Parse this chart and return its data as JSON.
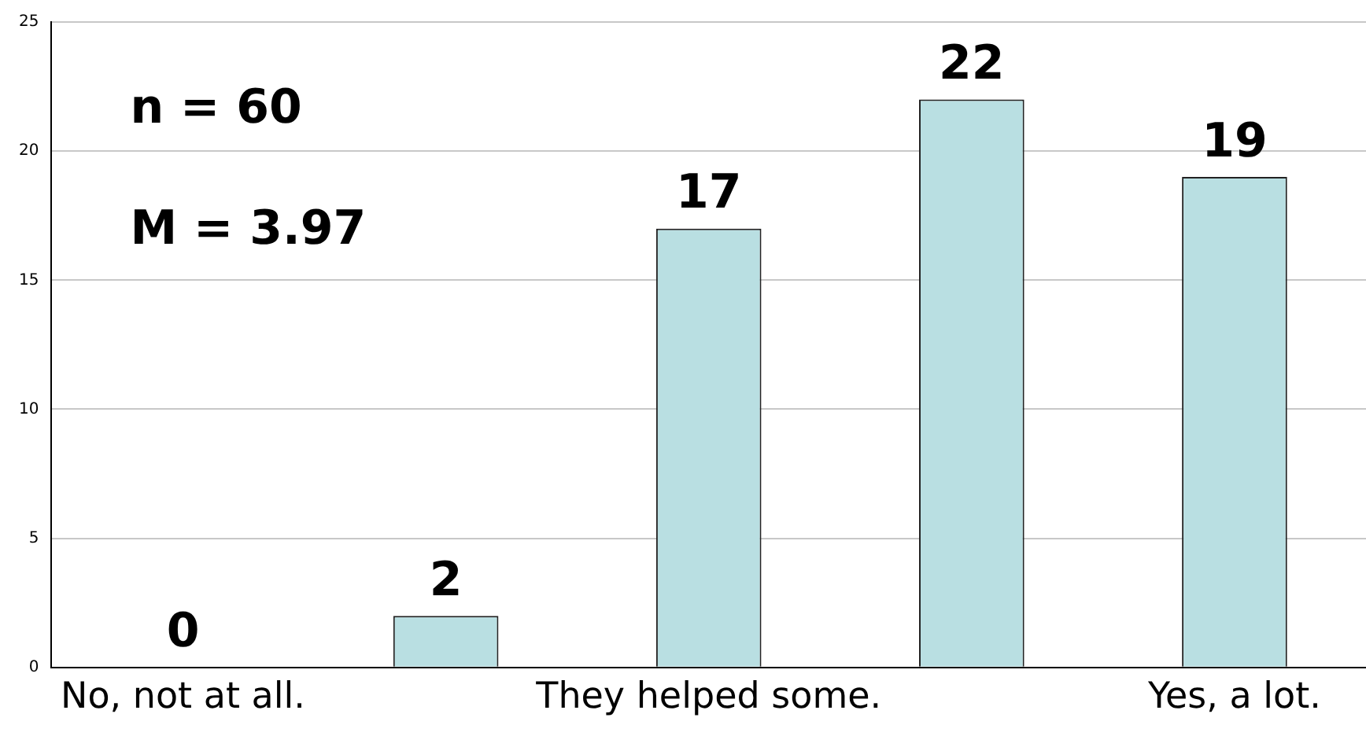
{
  "chart_data": {
    "type": "bar",
    "categories": [
      "No, not at all.",
      null,
      "They helped some.",
      null,
      "Yes, a lot."
    ],
    "values": [
      0,
      2,
      17,
      22,
      19
    ],
    "color": "#b9dfe2",
    "ylim": [
      0,
      25
    ],
    "yticks": [
      0,
      5,
      10,
      15,
      20,
      25
    ],
    "grid": "y",
    "data_labels": true,
    "legend": false,
    "annotations": [
      "n = 60",
      "M = 3.97"
    ]
  }
}
